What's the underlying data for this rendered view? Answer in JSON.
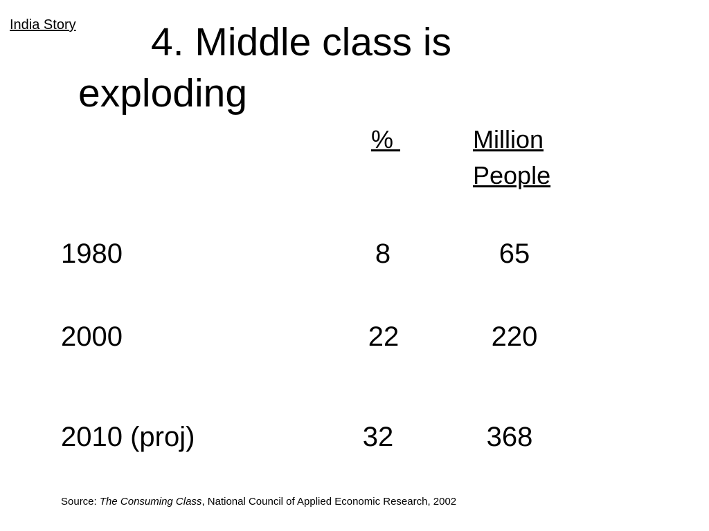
{
  "header": {
    "link_label": "India Story"
  },
  "title": {
    "line1": "4. Middle class is",
    "line2": "exploding"
  },
  "table": {
    "columns": {
      "percent": "% ",
      "million_line1": "Million",
      "million_line2": "People"
    },
    "rows": [
      {
        "year": "1980",
        "percent": "8",
        "million_people": "65"
      },
      {
        "year": "2000",
        "percent": "22",
        "million_people": "220"
      },
      {
        "year": "2010 (proj)",
        "percent": "32",
        "million_people": "368"
      }
    ]
  },
  "source": {
    "prefix": "Source: ",
    "title": "The Consuming Class",
    "suffix": ", National Council of Applied Economic Research, 2002"
  }
}
